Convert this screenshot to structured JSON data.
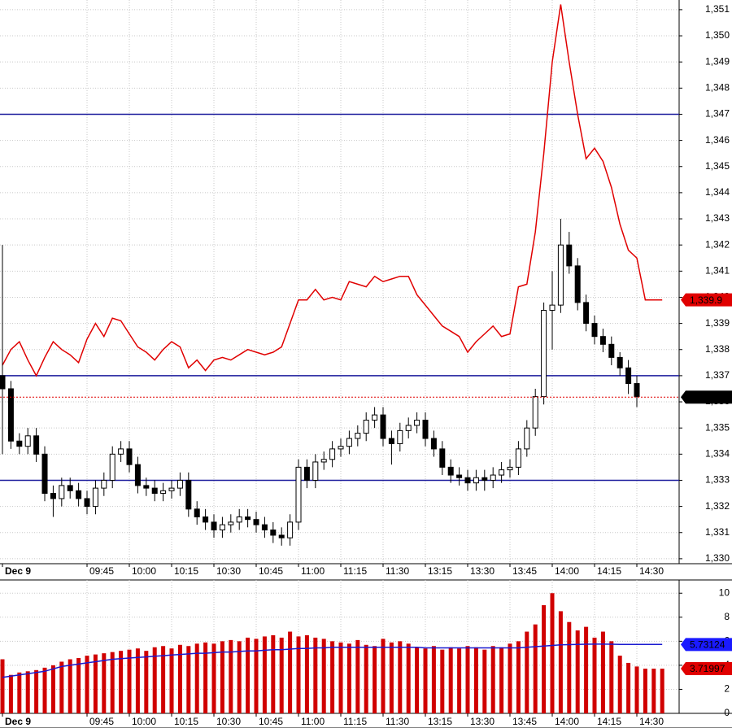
{
  "chart_data": [
    {
      "type": "candlestick",
      "xlim": [
        -0.29,
        80
      ],
      "xticks": [
        {
          "value": 0,
          "label": "Dec 9"
        },
        {
          "value": 10,
          "label": "09:45"
        },
        {
          "value": 15,
          "label": "10:00"
        },
        {
          "value": 20,
          "label": "10:15"
        },
        {
          "value": 25,
          "label": "10:30"
        },
        {
          "value": 30,
          "label": "10:45"
        },
        {
          "value": 35,
          "label": "11:00"
        },
        {
          "value": 40,
          "label": "11:15"
        },
        {
          "value": 45,
          "label": "11:30"
        },
        {
          "value": 50,
          "label": "13:15"
        },
        {
          "value": 55,
          "label": "13:30"
        },
        {
          "value": 60,
          "label": "13:45"
        },
        {
          "value": 65,
          "label": "14:00"
        },
        {
          "value": 70,
          "label": "14:15"
        },
        {
          "value": 75,
          "label": "14:30"
        }
      ],
      "ylim": [
        1329.81,
        1351.37
      ],
      "yticks": [
        {
          "value": 1330,
          "label": "1,330"
        },
        {
          "value": 1331,
          "label": "1,331"
        },
        {
          "value": 1332,
          "label": "1,332"
        },
        {
          "value": 1333,
          "label": "1,333"
        },
        {
          "value": 1334,
          "label": "1,334"
        },
        {
          "value": 1335,
          "label": "1,335"
        },
        {
          "value": 1336,
          "label": "1,336"
        },
        {
          "value": 1337,
          "label": "1,337"
        },
        {
          "value": 1338,
          "label": "1,338"
        },
        {
          "value": 1339,
          "label": "1,339"
        },
        {
          "value": 1340,
          "label": "1,340"
        },
        {
          "value": 1341,
          "label": "1,341"
        },
        {
          "value": 1342,
          "label": "1,342"
        },
        {
          "value": 1343,
          "label": "1,343"
        },
        {
          "value": 1344,
          "label": "1,344"
        },
        {
          "value": 1345,
          "label": "1,345"
        },
        {
          "value": 1346,
          "label": "1,346"
        },
        {
          "value": 1347,
          "label": "1,347"
        },
        {
          "value": 1348,
          "label": "1,348"
        },
        {
          "value": 1349,
          "label": "1,349"
        },
        {
          "value": 1350,
          "label": "1,350"
        },
        {
          "value": 1351,
          "label": "1,351"
        }
      ],
      "grid": true,
      "up_color": "#ffffff",
      "down_color": "#000000",
      "wick_color": "#000000",
      "candles": {
        "open": [
          1337.0,
          1336.5,
          1334.5,
          1334.3,
          1334.7,
          1334.0,
          1332.5,
          1332.3,
          1332.8,
          1332.6,
          1332.3,
          1332.0,
          1332.7,
          1333.0,
          1334.0,
          1334.2,
          1333.6,
          1332.8,
          1332.7,
          1332.5,
          1332.6,
          1332.7,
          1333.0,
          1331.9,
          1331.6,
          1331.4,
          1331.1,
          1331.3,
          1331.4,
          1331.6,
          1331.5,
          1331.3,
          1331.1,
          1330.9,
          1330.8,
          1331.4,
          1333.5,
          1333.0,
          1333.7,
          1333.8,
          1334.2,
          1334.3,
          1334.6,
          1334.8,
          1335.3,
          1335.5,
          1334.6,
          1334.4,
          1334.9,
          1335.1,
          1335.3,
          1334.6,
          1334.2,
          1333.5,
          1333.2,
          1333.1,
          1332.9,
          1333.1,
          1333.0,
          1333.2,
          1333.4,
          1333.5,
          1334.2,
          1335.0,
          1336.2,
          1339.5,
          1339.7,
          1342.0,
          1341.2,
          1339.8,
          1339.0,
          1338.5,
          1338.2,
          1337.7,
          1337.3,
          1336.7,
          null,
          null,
          null
        ],
        "high": [
          1342.0,
          1336.8,
          1334.8,
          1335.0,
          1335.0,
          1334.3,
          1332.8,
          1333.1,
          1333.1,
          1332.9,
          1332.6,
          1333.0,
          1333.3,
          1334.3,
          1334.5,
          1334.5,
          1333.9,
          1333.1,
          1333.0,
          1332.9,
          1333.0,
          1333.3,
          1333.3,
          1332.2,
          1331.9,
          1331.7,
          1331.6,
          1331.7,
          1331.9,
          1331.9,
          1331.8,
          1331.6,
          1331.4,
          1331.2,
          1331.7,
          1333.8,
          1333.8,
          1334.0,
          1334.1,
          1334.5,
          1334.6,
          1334.9,
          1335.1,
          1335.6,
          1335.8,
          1335.8,
          1334.9,
          1335.2,
          1335.4,
          1335.6,
          1335.6,
          1334.9,
          1334.5,
          1333.8,
          1333.5,
          1333.4,
          1333.4,
          1333.4,
          1333.5,
          1333.7,
          1333.8,
          1334.5,
          1335.3,
          1336.5,
          1339.8,
          1341.0,
          1343.0,
          1342.5,
          1341.5,
          1340.1,
          1339.3,
          1338.8,
          1338.5,
          1337.9,
          1337.6,
          1337.0,
          null,
          null,
          null
        ],
        "low": [
          1334.0,
          1334.2,
          1334.0,
          1334.0,
          1333.7,
          1332.2,
          1331.6,
          1332.0,
          1332.3,
          1332.0,
          1331.7,
          1331.7,
          1332.4,
          1332.7,
          1333.7,
          1333.3,
          1332.5,
          1332.4,
          1332.2,
          1332.2,
          1332.3,
          1332.4,
          1331.6,
          1331.3,
          1331.1,
          1330.8,
          1330.8,
          1331.0,
          1331.1,
          1331.2,
          1331.0,
          1330.8,
          1330.6,
          1330.5,
          1330.5,
          1331.1,
          1332.7,
          1332.7,
          1333.4,
          1333.5,
          1333.9,
          1334.0,
          1334.3,
          1334.5,
          1335.0,
          1334.3,
          1333.6,
          1334.1,
          1334.6,
          1334.8,
          1334.3,
          1333.9,
          1333.2,
          1332.9,
          1332.8,
          1332.6,
          1332.6,
          1332.6,
          1332.7,
          1332.9,
          1333.1,
          1333.2,
          1333.9,
          1334.7,
          1335.9,
          1338.0,
          1339.4,
          1340.9,
          1339.5,
          1338.7,
          1338.2,
          1337.9,
          1337.4,
          1337.0,
          1336.3,
          1335.8,
          null,
          null,
          null
        ],
        "close": [
          1336.5,
          1334.5,
          1334.3,
          1334.7,
          1334.0,
          1332.5,
          1332.3,
          1332.8,
          1332.6,
          1332.3,
          1332.0,
          1332.7,
          1333.0,
          1334.0,
          1334.2,
          1333.6,
          1332.8,
          1332.7,
          1332.5,
          1332.6,
          1332.7,
          1333.0,
          1331.9,
          1331.6,
          1331.4,
          1331.1,
          1331.3,
          1331.4,
          1331.6,
          1331.5,
          1331.3,
          1331.1,
          1330.9,
          1330.8,
          1331.4,
          1333.5,
          1333.0,
          1333.7,
          1333.8,
          1334.2,
          1334.3,
          1334.6,
          1334.8,
          1335.3,
          1335.5,
          1334.6,
          1334.4,
          1334.9,
          1335.1,
          1335.3,
          1334.6,
          1334.2,
          1333.5,
          1333.2,
          1333.1,
          1332.9,
          1333.1,
          1333.0,
          1333.2,
          1333.4,
          1333.5,
          1334.2,
          1335.0,
          1336.2,
          1339.5,
          1339.7,
          1342.0,
          1341.2,
          1339.8,
          1339.0,
          1338.5,
          1338.2,
          1337.7,
          1337.3,
          1336.7,
          1336.2,
          null,
          null,
          null
        ]
      },
      "series": [
        {
          "color": "#e00000",
          "values": [
            1337.4,
            1338.0,
            1338.3,
            1337.6,
            1337.0,
            1337.7,
            1338.3,
            1338.0,
            1337.8,
            1337.5,
            1338.4,
            1339.0,
            1338.5,
            1339.2,
            1339.1,
            1338.6,
            1338.1,
            1337.9,
            1337.6,
            1338.0,
            1338.3,
            1338.1,
            1337.3,
            1337.6,
            1337.2,
            1337.6,
            1337.7,
            1337.6,
            1337.8,
            1338.0,
            1337.9,
            1337.8,
            1337.9,
            1338.1,
            1339.0,
            1339.9,
            1339.9,
            1340.3,
            1339.9,
            1340.0,
            1339.9,
            1340.6,
            1340.5,
            1340.4,
            1340.8,
            1340.6,
            1340.7,
            1340.8,
            1340.8,
            1340.1,
            1339.7,
            1339.3,
            1338.9,
            1338.7,
            1338.5,
            1337.9,
            1338.3,
            1338.6,
            1338.9,
            1338.5,
            1338.6,
            1340.4,
            1340.5,
            1342.5,
            1345.5,
            1349.0,
            1351.2,
            1349.0,
            1347.0,
            1345.3,
            1345.7,
            1345.2,
            1344.2,
            1342.8,
            1341.8,
            1341.5,
            1339.9,
            1339.9,
            1339.9
          ]
        }
      ],
      "levels": [
        {
          "value": 1347,
          "color": "#1a1a9c"
        },
        {
          "value": 1337,
          "color": "#1a1a9c"
        },
        {
          "value": 1333,
          "color": "#1a1a9c"
        }
      ],
      "last_labels": [
        {
          "value": 1339.9,
          "label": "1,339.9",
          "color": "#e00000",
          "text_color": "#ffffff",
          "line": false
        },
        {
          "value": 1336.18,
          "label": "1,336.18",
          "color": "#000000",
          "text_color": "#ffffff",
          "line": true
        }
      ]
    },
    {
      "type": "bar",
      "xlim": [
        -0.29,
        80
      ],
      "xticks": [
        {
          "value": 0,
          "label": "Dec 9"
        },
        {
          "value": 10,
          "label": "09:45"
        },
        {
          "value": 15,
          "label": "10:00"
        },
        {
          "value": 20,
          "label": "10:15"
        },
        {
          "value": 25,
          "label": "10:30"
        },
        {
          "value": 30,
          "label": "10:45"
        },
        {
          "value": 35,
          "label": "11:00"
        },
        {
          "value": 40,
          "label": "11:15"
        },
        {
          "value": 45,
          "label": "11:30"
        },
        {
          "value": 50,
          "label": "13:15"
        },
        {
          "value": 55,
          "label": "13:30"
        },
        {
          "value": 60,
          "label": "13:45"
        },
        {
          "value": 65,
          "label": "14:00"
        },
        {
          "value": 70,
          "label": "14:15"
        },
        {
          "value": 75,
          "label": "14:30"
        }
      ],
      "ylim": [
        0,
        11.1
      ],
      "yticks": [
        0,
        2,
        4,
        6,
        8,
        10
      ],
      "grid": true,
      "color": "#d00000",
      "values": [
        4.5,
        3.2,
        3.4,
        3.5,
        3.6,
        3.8,
        4.0,
        4.3,
        4.5,
        4.6,
        4.8,
        4.9,
        5.0,
        5.1,
        5.2,
        5.3,
        5.4,
        5.2,
        5.5,
        5.6,
        5.4,
        5.7,
        5.6,
        5.8,
        5.9,
        5.8,
        6.0,
        6.1,
        6.0,
        6.3,
        6.2,
        6.4,
        6.5,
        6.3,
        6.8,
        6.4,
        6.5,
        6.3,
        6.2,
        6.0,
        5.9,
        5.8,
        6.1,
        5.7,
        5.6,
        6.2,
        5.9,
        6.0,
        5.8,
        5.5,
        5.4,
        5.6,
        5.3,
        5.5,
        5.4,
        5.6,
        5.5,
        5.3,
        5.6,
        5.5,
        5.8,
        6.0,
        6.8,
        7.4,
        9.0,
        10.0,
        8.5,
        7.6,
        6.9,
        7.2,
        6.3,
        6.8,
        6.0,
        4.8,
        4.2,
        3.9,
        3.71997,
        3.71997,
        3.71997
      ],
      "series": [
        {
          "color": "#1a1ad0",
          "values": [
            3.0,
            3.1,
            3.2,
            3.3,
            3.4,
            3.5,
            3.7,
            3.9,
            4.0,
            4.1,
            4.2,
            4.3,
            4.4,
            4.5,
            4.55,
            4.6,
            4.65,
            4.7,
            4.75,
            4.8,
            4.85,
            4.9,
            4.95,
            5.0,
            5.0,
            5.05,
            5.1,
            5.1,
            5.15,
            5.2,
            5.2,
            5.25,
            5.3,
            5.3,
            5.35,
            5.4,
            5.4,
            5.45,
            5.45,
            5.5,
            5.5,
            5.5,
            5.5,
            5.5,
            5.5,
            5.5,
            5.5,
            5.5,
            5.5,
            5.5,
            5.45,
            5.45,
            5.45,
            5.45,
            5.45,
            5.45,
            5.45,
            5.45,
            5.45,
            5.45,
            5.45,
            5.45,
            5.5,
            5.55,
            5.6,
            5.65,
            5.7,
            5.72,
            5.74,
            5.75,
            5.76,
            5.76,
            5.75,
            5.74,
            5.74,
            5.73124,
            5.73124,
            5.73124,
            5.73124
          ]
        }
      ],
      "last_labels": [
        {
          "value": 5.73124,
          "color": "#1a1aff",
          "text_color": "#ffffff",
          "line": false
        },
        {
          "value": 3.71997,
          "color": "#e00000",
          "text_color": "#ffffff",
          "line": false
        }
      ]
    }
  ]
}
